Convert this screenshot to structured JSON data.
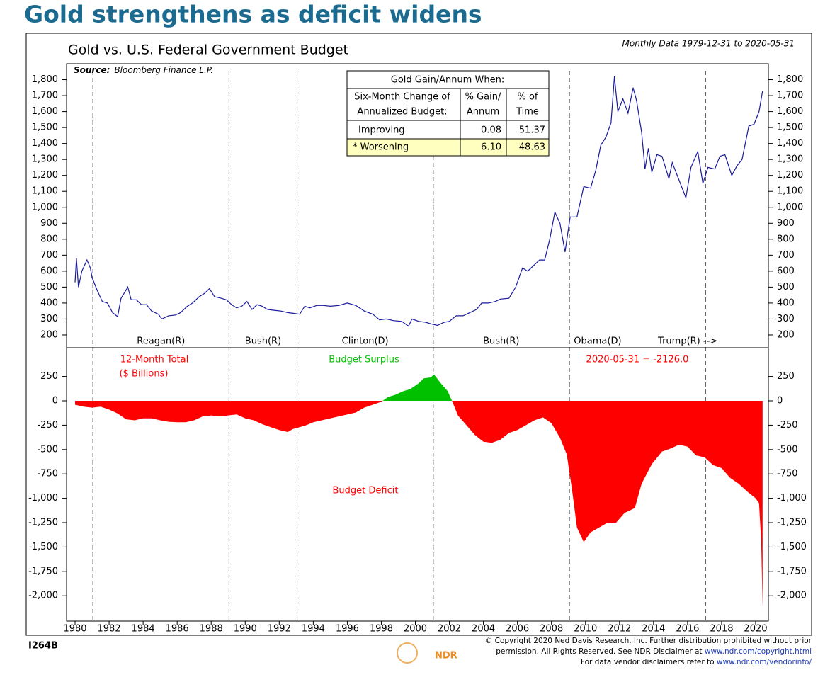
{
  "title": "Gold strengthens as deficit widens",
  "subtitle": "Gold vs. U.S. Federal Government Budget",
  "period": "Monthly Data 1979-12-31 to 2020-05-31",
  "source_label": "Source:",
  "source": "Bloomberg Finance L.P.",
  "table": {
    "title": "Gold Gain/Annum When:",
    "header": [
      [
        "Six-Month Change of",
        "Annualized Budget:"
      ],
      [
        "% Gain/",
        "Annum"
      ],
      [
        "% of",
        "Time"
      ]
    ],
    "rows": [
      [
        "Improving",
        "0.08",
        "51.37"
      ],
      [
        "* Worsening",
        "6.10",
        "48.63"
      ]
    ]
  },
  "chart_data": [
    {
      "type": "line",
      "color": "#1a1a9c",
      "ylim": [
        120,
        1900
      ],
      "yticks": [
        200,
        300,
        400,
        500,
        600,
        700,
        800,
        900,
        {
          "value": 1000,
          "label": "1,000"
        },
        {
          "value": 1100,
          "label": "1,100"
        },
        {
          "value": 1200,
          "label": "1,200"
        },
        {
          "value": 1300,
          "label": "1,300"
        },
        {
          "value": 1400,
          "label": "1,400"
        },
        {
          "value": 1500,
          "label": "1,500"
        },
        {
          "value": 1600,
          "label": "1,600"
        },
        {
          "value": 1700,
          "label": "1,700"
        },
        {
          "value": 1800,
          "label": "1,800"
        }
      ],
      "regimes": [
        {
          "label": "Reagan(R)",
          "start": 1981.05
        },
        {
          "label": "Bush(R)",
          "start": 1989.05
        },
        {
          "label": "Clinton(D)",
          "start": 1993.05
        },
        {
          "label": "Bush(R)",
          "start": 2001.05
        },
        {
          "label": "Obama(D)",
          "start": 2009.05
        },
        {
          "label": "Trump(R) -->",
          "start": 2017.05
        }
      ],
      "x": [
        1980.0,
        1980.08,
        1980.2,
        1980.4,
        1980.7,
        1980.9,
        1981.0,
        1981.3,
        1981.6,
        1981.9,
        1982.2,
        1982.5,
        1982.7,
        1983.1,
        1983.3,
        1983.6,
        1983.9,
        1984.2,
        1984.5,
        1984.9,
        1985.1,
        1985.5,
        1985.9,
        1986.2,
        1986.6,
        1986.9,
        1987.3,
        1987.6,
        1987.9,
        1988.2,
        1988.6,
        1988.9,
        1989.2,
        1989.5,
        1989.8,
        1990.1,
        1990.4,
        1990.7,
        1991.0,
        1991.3,
        1991.7,
        1992.1,
        1992.5,
        1992.9,
        1993.2,
        1993.5,
        1993.8,
        1994.2,
        1994.6,
        1995.0,
        1995.5,
        1996.0,
        1996.5,
        1997.0,
        1997.5,
        1997.9,
        1998.3,
        1998.7,
        1999.2,
        1999.6,
        1999.8,
        2000.2,
        2000.6,
        2000.9,
        2001.3,
        2001.7,
        2002.0,
        2002.4,
        2002.8,
        2003.2,
        2003.6,
        2003.9,
        2004.3,
        2004.7,
        2005.0,
        2005.5,
        2005.9,
        2006.3,
        2006.6,
        2006.9,
        2007.3,
        2007.6,
        2007.9,
        2008.2,
        2008.5,
        2008.8,
        2009.1,
        2009.5,
        2009.9,
        2010.3,
        2010.6,
        2010.9,
        2011.2,
        2011.5,
        2011.7,
        2011.9,
        2012.2,
        2012.5,
        2012.8,
        2013.0,
        2013.3,
        2013.5,
        2013.7,
        2013.9,
        2014.2,
        2014.5,
        2014.9,
        2015.1,
        2015.5,
        2015.9,
        2016.2,
        2016.6,
        2016.9,
        2017.2,
        2017.6,
        2017.9,
        2018.2,
        2018.6,
        2018.9,
        2019.2,
        2019.6,
        2019.9,
        2020.2,
        2020.41
      ],
      "values": [
        530,
        680,
        500,
        600,
        670,
        620,
        560,
        480,
        410,
        400,
        340,
        315,
        430,
        500,
        420,
        420,
        390,
        390,
        350,
        330,
        300,
        320,
        325,
        340,
        380,
        400,
        440,
        460,
        490,
        440,
        430,
        420,
        390,
        370,
        380,
        410,
        360,
        390,
        380,
        360,
        355,
        350,
        340,
        335,
        330,
        380,
        370,
        385,
        385,
        380,
        385,
        400,
        385,
        350,
        330,
        295,
        300,
        290,
        285,
        255,
        300,
        285,
        280,
        270,
        260,
        280,
        285,
        320,
        320,
        340,
        360,
        400,
        400,
        410,
        425,
        430,
        500,
        620,
        600,
        630,
        670,
        670,
        800,
        970,
        900,
        720,
        940,
        940,
        1130,
        1120,
        1230,
        1390,
        1440,
        1530,
        1820,
        1600,
        1680,
        1590,
        1750,
        1670,
        1470,
        1240,
        1370,
        1220,
        1330,
        1320,
        1180,
        1280,
        1170,
        1060,
        1250,
        1350,
        1150,
        1250,
        1240,
        1320,
        1330,
        1200,
        1260,
        1300,
        1510,
        1520,
        1600,
        1730
      ]
    },
    {
      "type": "area",
      "color": "#ff0000",
      "positive_color": "#00c000",
      "ylim": [
        -2260,
        545
      ],
      "xlim": [
        1979.5,
        2020.75
      ],
      "xticks": [
        1980,
        1982,
        1984,
        1986,
        1988,
        1990,
        1992,
        1994,
        1996,
        1998,
        2000,
        2002,
        2004,
        2006,
        2008,
        2010,
        2012,
        2014,
        2016,
        2018,
        2020
      ],
      "yticks": [
        {
          "value": -2000,
          "label": "-2,000"
        },
        {
          "value": -1750,
          "label": "-1,750"
        },
        {
          "value": -1500,
          "label": "-1,500"
        },
        {
          "value": -1250,
          "label": "-1,250"
        },
        {
          "value": -1000,
          "label": "-1,000"
        },
        -750,
        -500,
        -250,
        0,
        250
      ],
      "annotations": {
        "total": "12-Month Total",
        "units": "($ Billions)",
        "surplus": "Budget Surplus",
        "deficit": "Budget Deficit",
        "latest": "2020-05-31 = -2126.0"
      },
      "x": [
        1980.0,
        1980.5,
        1981.0,
        1981.5,
        1982.0,
        1982.5,
        1983.0,
        1983.5,
        1984.0,
        1984.5,
        1985.0,
        1985.5,
        1986.0,
        1986.5,
        1987.0,
        1987.5,
        1988.0,
        1988.5,
        1989.0,
        1989.5,
        1990.0,
        1990.5,
        1991.0,
        1991.5,
        1992.0,
        1992.5,
        1992.8,
        1993.2,
        1993.6,
        1994.0,
        1994.5,
        1995.0,
        1995.5,
        1996.0,
        1996.5,
        1997.0,
        1997.5,
        1998.0,
        1998.4,
        1998.8,
        1999.3,
        1999.7,
        2000.2,
        2000.5,
        2000.9,
        2001.1,
        2001.5,
        2001.9,
        2002.2,
        2002.5,
        2003.0,
        2003.5,
        2004.0,
        2004.5,
        2005.0,
        2005.5,
        2006.0,
        2006.5,
        2007.0,
        2007.5,
        2008.0,
        2008.5,
        2008.9,
        2009.2,
        2009.5,
        2009.9,
        2010.3,
        2010.8,
        2011.3,
        2011.8,
        2012.3,
        2012.9,
        2013.3,
        2013.9,
        2014.5,
        2015.0,
        2015.5,
        2016.0,
        2016.5,
        2017.0,
        2017.5,
        2018.0,
        2018.5,
        2019.0,
        2019.5,
        2020.0,
        2020.2,
        2020.33,
        2020.41
      ],
      "values": [
        -40,
        -60,
        -70,
        -60,
        -90,
        -130,
        -190,
        -200,
        -180,
        -180,
        -200,
        -215,
        -220,
        -220,
        -200,
        -160,
        -150,
        -160,
        -150,
        -140,
        -180,
        -200,
        -240,
        -270,
        -300,
        -320,
        -290,
        -270,
        -250,
        -220,
        -200,
        -180,
        -160,
        -140,
        -120,
        -70,
        -40,
        -10,
        40,
        60,
        100,
        120,
        180,
        230,
        240,
        270,
        180,
        100,
        -20,
        -150,
        -250,
        -350,
        -420,
        -430,
        -400,
        -330,
        -300,
        -250,
        -200,
        -170,
        -230,
        -380,
        -550,
        -900,
        -1300,
        -1450,
        -1350,
        -1300,
        -1250,
        -1250,
        -1150,
        -1100,
        -850,
        -650,
        -520,
        -490,
        -450,
        -470,
        -560,
        -580,
        -660,
        -690,
        -790,
        -850,
        -930,
        -1000,
        -1050,
        -1450,
        -2126
      ]
    }
  ],
  "footer": {
    "code": "I264B",
    "logo": "NDR",
    "line1": "© Copyright 2020 Ned Davis Research, Inc. Further distribution prohibited without prior",
    "line2": "permission. All Rights Reserved. See NDR Disclaimer at ",
    "link2": "www.ndr.com/copyright.html",
    "line3": "For data vendor disclaimers refer to ",
    "link3": "www.ndr.com/vendorinfo/"
  }
}
